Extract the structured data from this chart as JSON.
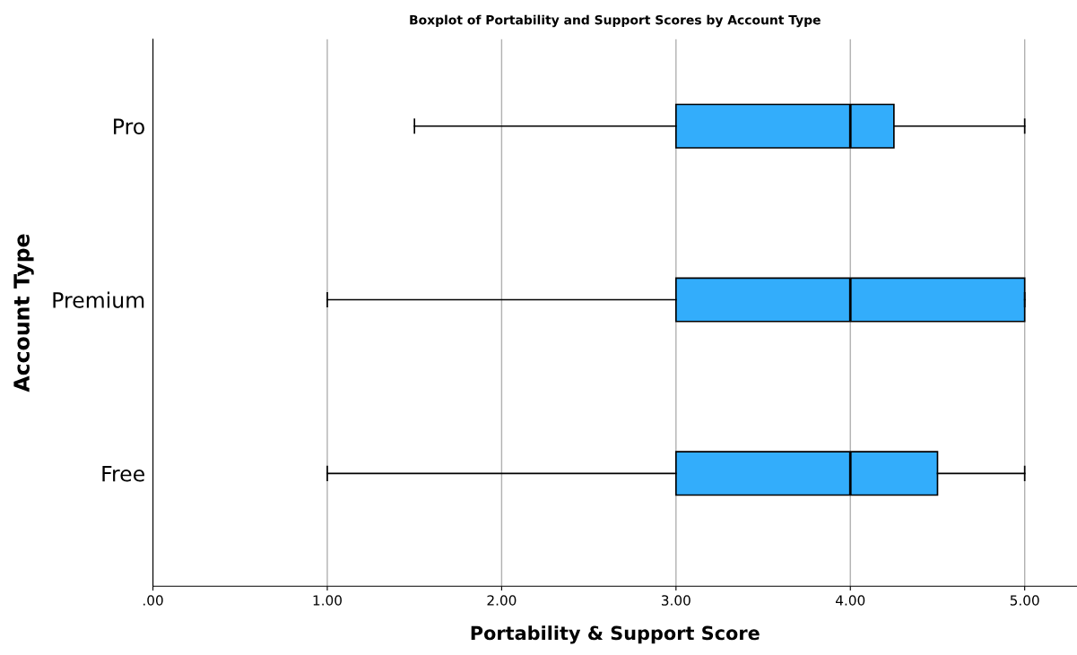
{
  "chart_data": {
    "type": "box",
    "orientation": "horizontal",
    "title": "Boxplot of Portability and Support Scores by Account Type",
    "xlabel": "Portability & Support Score",
    "ylabel": "Account Type",
    "categories": [
      "Pro",
      "Premium",
      "Free"
    ],
    "series": [
      {
        "color": "#33adfb",
        "boxes": [
          {
            "low": 1.5,
            "q1": 3,
            "median": 4,
            "q3": 4.25,
            "high": 5
          },
          {
            "low": 1,
            "q1": 3,
            "median": 4,
            "q3": 5,
            "high": 5
          },
          {
            "low": 1,
            "q1": 3,
            "median": 4,
            "q3": 4.5,
            "high": 5
          }
        ]
      }
    ],
    "xlim": [
      0,
      5.3
    ],
    "xticks": [
      {
        "value": 0,
        "label": ".00"
      },
      {
        "value": 1,
        "label": "1.00"
      },
      {
        "value": 2,
        "label": "2.00"
      },
      {
        "value": 3,
        "label": "3.00"
      },
      {
        "value": 4,
        "label": "4.00"
      },
      {
        "value": 5,
        "label": "5.00"
      }
    ],
    "grid": "x"
  }
}
